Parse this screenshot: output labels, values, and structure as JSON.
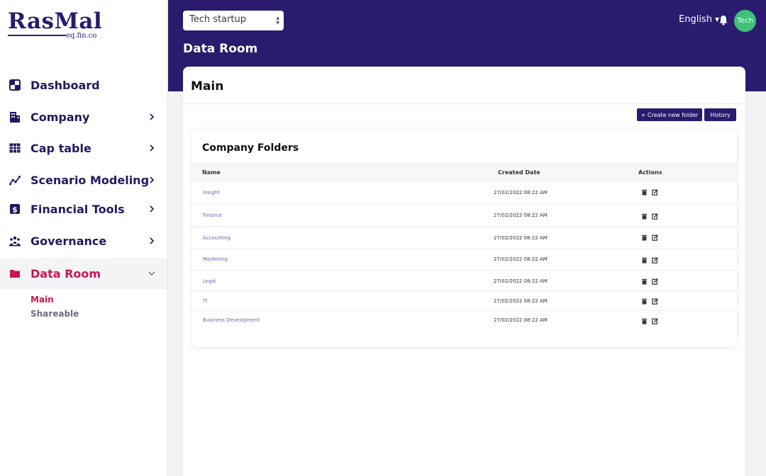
{
  "brand": {
    "logo_text": "RasMal",
    "logo_sub": "eq.fin.co"
  },
  "sidebar": {
    "items": [
      {
        "label": "Dashboard",
        "icon": "dashboard-icon"
      },
      {
        "label": "Company",
        "icon": "building-icon"
      },
      {
        "label": "Cap table",
        "icon": "table-icon"
      },
      {
        "label": "Scenario Modeling",
        "icon": "chart-line-icon"
      },
      {
        "label": "Financial Tools",
        "icon": "dollar-icon"
      },
      {
        "label": "Governance",
        "icon": "people-icon"
      },
      {
        "label": "Data Room",
        "icon": "folder-icon"
      }
    ],
    "submenu": [
      "Main",
      "Shareable"
    ],
    "active_color": "#c8174f"
  },
  "header": {
    "company_select": "Tech startup",
    "language": "English",
    "avatar": "Tech",
    "page_title": "Data Room",
    "background": "#2a1b6e"
  },
  "main": {
    "title": "Main",
    "create_button": "+ Create new folder",
    "history_button": "History",
    "folders": {
      "title": "Company Folders",
      "columns": [
        "Name",
        "Created Date",
        "Actions"
      ],
      "rows": [
        {
          "name": "Insight",
          "date": "27/02/2022 08:22 AM"
        },
        {
          "name": "Finance",
          "date": "27/02/2022 08:22 AM"
        },
        {
          "name": "Accounting",
          "date": "27/02/2022 08:22 AM"
        },
        {
          "name": "Marketing",
          "date": "27/02/2022 08:22 AM"
        },
        {
          "name": "Legal",
          "date": "27/02/2022 08:22 AM"
        },
        {
          "name": "IT",
          "date": "27/02/2022 08:22 AM"
        },
        {
          "name": "Business Development",
          "date": "27/02/2022 08:22 AM"
        }
      ]
    }
  }
}
